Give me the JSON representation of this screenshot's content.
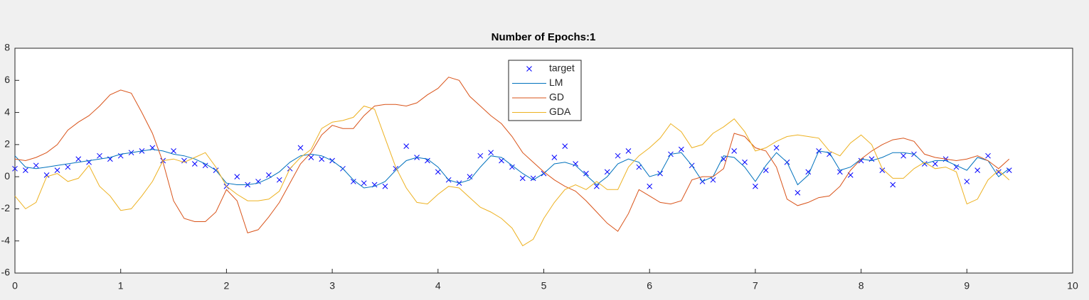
{
  "chart_data": {
    "type": "line",
    "title": "Number of Epochs:1",
    "x": [
      0,
      0.1,
      0.2,
      0.3,
      0.4,
      0.5,
      0.6,
      0.7,
      0.8,
      0.9,
      1,
      1.1,
      1.2,
      1.3,
      1.4,
      1.5,
      1.6,
      1.7,
      1.8,
      1.9,
      2,
      2.1,
      2.2,
      2.3,
      2.4,
      2.5,
      2.6,
      2.7,
      2.8,
      2.9,
      3,
      3.1,
      3.2,
      3.3,
      3.4,
      3.5,
      3.6,
      3.7,
      3.8,
      3.9,
      4,
      4.1,
      4.2,
      4.3,
      4.4,
      4.5,
      4.6,
      4.7,
      4.8,
      4.9,
      5,
      5.1,
      5.2,
      5.3,
      5.4,
      5.5,
      5.6,
      5.7,
      5.8,
      5.9,
      6,
      6.1,
      6.2,
      6.3,
      6.4,
      6.5,
      6.6,
      6.7,
      6.8,
      6.9,
      7,
      7.1,
      7.2,
      7.3,
      7.4,
      7.5,
      7.6,
      7.7,
      7.8,
      7.9,
      8,
      8.1,
      8.2,
      8.3,
      8.4,
      8.5,
      8.6,
      8.7,
      8.8,
      8.9,
      9,
      9.1,
      9.2,
      9.3,
      9.4
    ],
    "series": [
      {
        "name": "target",
        "color": "#0000ff",
        "marker": "x",
        "values": [
          0.5,
          0.4,
          0.7,
          0.1,
          0.4,
          0.6,
          1.1,
          0.9,
          1.3,
          1.1,
          1.3,
          1.5,
          1.6,
          1.8,
          1.0,
          1.6,
          1.0,
          0.8,
          0.7,
          0.4,
          -0.6,
          0.0,
          -0.5,
          -0.3,
          0.1,
          -0.2,
          0.5,
          1.8,
          1.2,
          1.1,
          1.0,
          0.5,
          -0.3,
          -0.4,
          -0.5,
          -0.6,
          0.5,
          1.9,
          1.2,
          1.0,
          0.3,
          -0.2,
          -0.4,
          0.0,
          1.3,
          1.5,
          1.0,
          0.6,
          -0.1,
          -0.1,
          0.2,
          1.2,
          1.9,
          0.8,
          0.2,
          -0.6,
          0.3,
          1.3,
          1.6,
          0.6,
          -0.6,
          0.2,
          1.4,
          1.7,
          0.7,
          -0.3,
          -0.2,
          1.1,
          1.6,
          0.9,
          -0.6,
          0.4,
          1.8,
          0.9,
          -1.0,
          0.3,
          1.6,
          1.4,
          0.3,
          0.1,
          1.0,
          1.1,
          0.4,
          -0.5,
          1.3,
          1.4,
          0.8,
          0.8,
          1.1,
          0.6,
          -0.3,
          0.4,
          1.3,
          0.3,
          0.4
        ]
      },
      {
        "name": "LM",
        "color": "#0072bd",
        "values": [
          1.3,
          0.6,
          0.5,
          0.6,
          0.7,
          0.8,
          0.9,
          1.0,
          1.1,
          1.2,
          1.4,
          1.5,
          1.6,
          1.7,
          1.6,
          1.4,
          1.3,
          1.1,
          0.8,
          0.4,
          -0.4,
          -0.5,
          -0.5,
          -0.4,
          -0.1,
          0.3,
          0.9,
          1.3,
          1.4,
          1.3,
          1.0,
          0.5,
          -0.2,
          -0.7,
          -0.6,
          -0.3,
          0.4,
          1.0,
          1.2,
          1.1,
          0.6,
          -0.2,
          -0.4,
          -0.2,
          0.6,
          1.3,
          1.2,
          0.7,
          0.2,
          -0.2,
          0.2,
          0.8,
          0.9,
          0.7,
          0.1,
          -0.5,
          0.0,
          0.8,
          1.1,
          0.9,
          0.0,
          0.2,
          1.4,
          1.5,
          0.7,
          -0.3,
          0.0,
          1.3,
          1.2,
          0.6,
          -0.3,
          0.7,
          1.5,
          0.9,
          -0.5,
          0.1,
          1.6,
          1.5,
          0.4,
          0.6,
          1.1,
          1.0,
          1.2,
          1.5,
          1.5,
          1.4,
          0.8,
          1.0,
          1.0,
          0.7,
          0.4,
          1.2,
          1.0,
          0.0,
          0.5
        ]
      },
      {
        "name": "GD",
        "color": "#d95319",
        "values": [
          1.1,
          1.0,
          1.2,
          1.5,
          2.0,
          2.9,
          3.4,
          3.8,
          4.4,
          5.1,
          5.4,
          5.2,
          4.0,
          2.7,
          0.9,
          -1.5,
          -2.6,
          -2.8,
          -2.8,
          -2.2,
          -0.8,
          -1.5,
          -3.5,
          -3.3,
          -2.5,
          -1.6,
          -0.4,
          0.8,
          1.5,
          2.6,
          3.2,
          3.0,
          3.0,
          3.8,
          4.4,
          4.5,
          4.5,
          4.4,
          4.6,
          5.1,
          5.5,
          6.2,
          6.0,
          5.0,
          4.4,
          3.8,
          3.3,
          2.5,
          1.5,
          0.9,
          0.3,
          -0.2,
          -0.6,
          -0.9,
          -1.5,
          -2.2,
          -2.9,
          -3.4,
          -2.3,
          -0.8,
          -1.2,
          -1.6,
          -1.7,
          -1.5,
          -0.2,
          0.0,
          0.0,
          0.5,
          2.7,
          2.5,
          1.8,
          1.6,
          0.6,
          -1.4,
          -1.8,
          -1.6,
          -1.3,
          -1.2,
          -0.6,
          0.4,
          1.1,
          1.6,
          2.0,
          2.3,
          2.4,
          2.2,
          1.4,
          1.2,
          1.1,
          1.0,
          1.1,
          1.3,
          1.0,
          0.5,
          1.1
        ]
      },
      {
        "name": "GDA",
        "color": "#edb120",
        "values": [
          -1.2,
          -2.0,
          -1.6,
          0.0,
          0.2,
          -0.3,
          -0.1,
          0.7,
          -0.6,
          -1.2,
          -2.1,
          -2.0,
          -1.2,
          -0.3,
          1.0,
          1.1,
          0.9,
          1.2,
          1.5,
          0.6,
          -0.6,
          -1.1,
          -1.5,
          -1.5,
          -1.4,
          -0.9,
          0.5,
          1.2,
          1.7,
          3.0,
          3.4,
          3.5,
          3.7,
          4.4,
          4.2,
          2.4,
          0.6,
          -0.7,
          -1.6,
          -1.7,
          -1.1,
          -0.6,
          -0.7,
          -1.3,
          -1.9,
          -2.2,
          -2.6,
          -3.2,
          -4.3,
          -3.9,
          -2.6,
          -1.6,
          -0.8,
          -0.5,
          -0.8,
          -0.3,
          -0.8,
          -0.8,
          0.6,
          1.3,
          1.8,
          2.4,
          3.3,
          2.8,
          1.8,
          2.0,
          2.7,
          3.1,
          3.6,
          2.8,
          1.6,
          1.8,
          2.2,
          2.5,
          2.6,
          2.5,
          2.4,
          1.6,
          1.3,
          2.1,
          2.6,
          2.0,
          0.5,
          -0.1,
          -0.1,
          0.5,
          0.9,
          0.5,
          0.6,
          0.3,
          -1.7,
          -1.4,
          -0.2,
          0.4,
          -0.2
        ]
      }
    ],
    "xlim": [
      0,
      10
    ],
    "xticks": [
      0,
      1,
      2,
      3,
      4,
      5,
      6,
      7,
      8,
      9,
      10
    ],
    "ylim": [
      -6,
      8
    ],
    "yticks": [
      -6,
      -4,
      -2,
      0,
      2,
      4,
      6,
      8
    ],
    "grid": false,
    "legend": "north"
  }
}
